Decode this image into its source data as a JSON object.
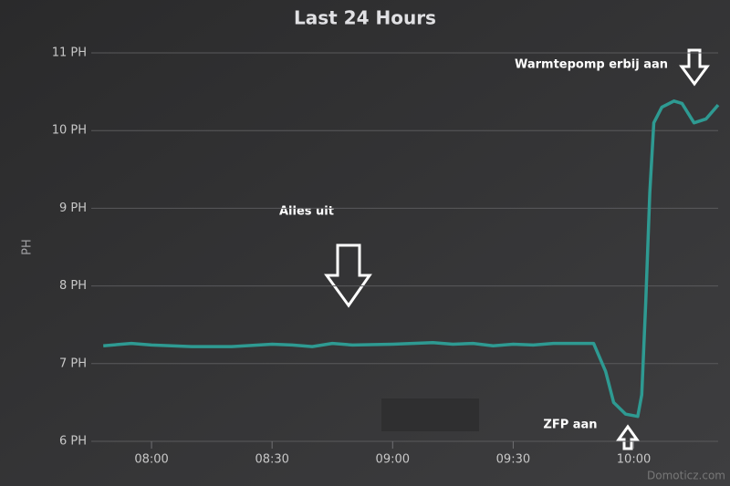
{
  "chart_data": {
    "type": "line",
    "title": "Last 24 Hours",
    "y_label": "PH",
    "x": [
      "07:48",
      "07:55",
      "08:00",
      "08:10",
      "08:20",
      "08:30",
      "08:35",
      "08:40",
      "08:45",
      "08:50",
      "09:00",
      "09:10",
      "09:15",
      "09:20",
      "09:25",
      "09:30",
      "09:35",
      "09:40",
      "09:50",
      "09:53",
      "09:55",
      "09:58",
      "10:01",
      "10:02",
      "10:03",
      "10:04",
      "10:05",
      "10:07",
      "10:10",
      "10:12",
      "10:15",
      "10:18",
      "10:21"
    ],
    "series": [
      {
        "name": "PH",
        "color": "#2e9a92",
        "values": [
          7.23,
          7.26,
          7.24,
          7.22,
          7.22,
          7.25,
          7.24,
          7.22,
          7.26,
          7.24,
          7.25,
          7.27,
          7.25,
          7.26,
          7.23,
          7.25,
          7.24,
          7.26,
          7.26,
          6.9,
          6.5,
          6.35,
          6.32,
          6.6,
          7.8,
          9.2,
          10.1,
          10.3,
          10.38,
          10.35,
          10.1,
          10.15,
          10.33
        ]
      }
    ],
    "xlim": [
      "07:45",
      "10:21"
    ],
    "xticks": [
      "08:00",
      "08:30",
      "09:00",
      "09:30",
      "10:00"
    ],
    "ylim": [
      6,
      11
    ],
    "yticks": [
      {
        "value": 6,
        "label": "6 PH"
      },
      {
        "value": 7,
        "label": "7 PH"
      },
      {
        "value": 8,
        "label": "8 PH"
      },
      {
        "value": 9,
        "label": "9 PH"
      },
      {
        "value": 10,
        "label": "10 PH"
      },
      {
        "value": 11,
        "label": "11 PH"
      }
    ],
    "grid": true,
    "annotations": [
      "Alles uit",
      "Warmtepomp erbij aan",
      "ZFP aan"
    ],
    "watermark": "Domoticz.com"
  }
}
